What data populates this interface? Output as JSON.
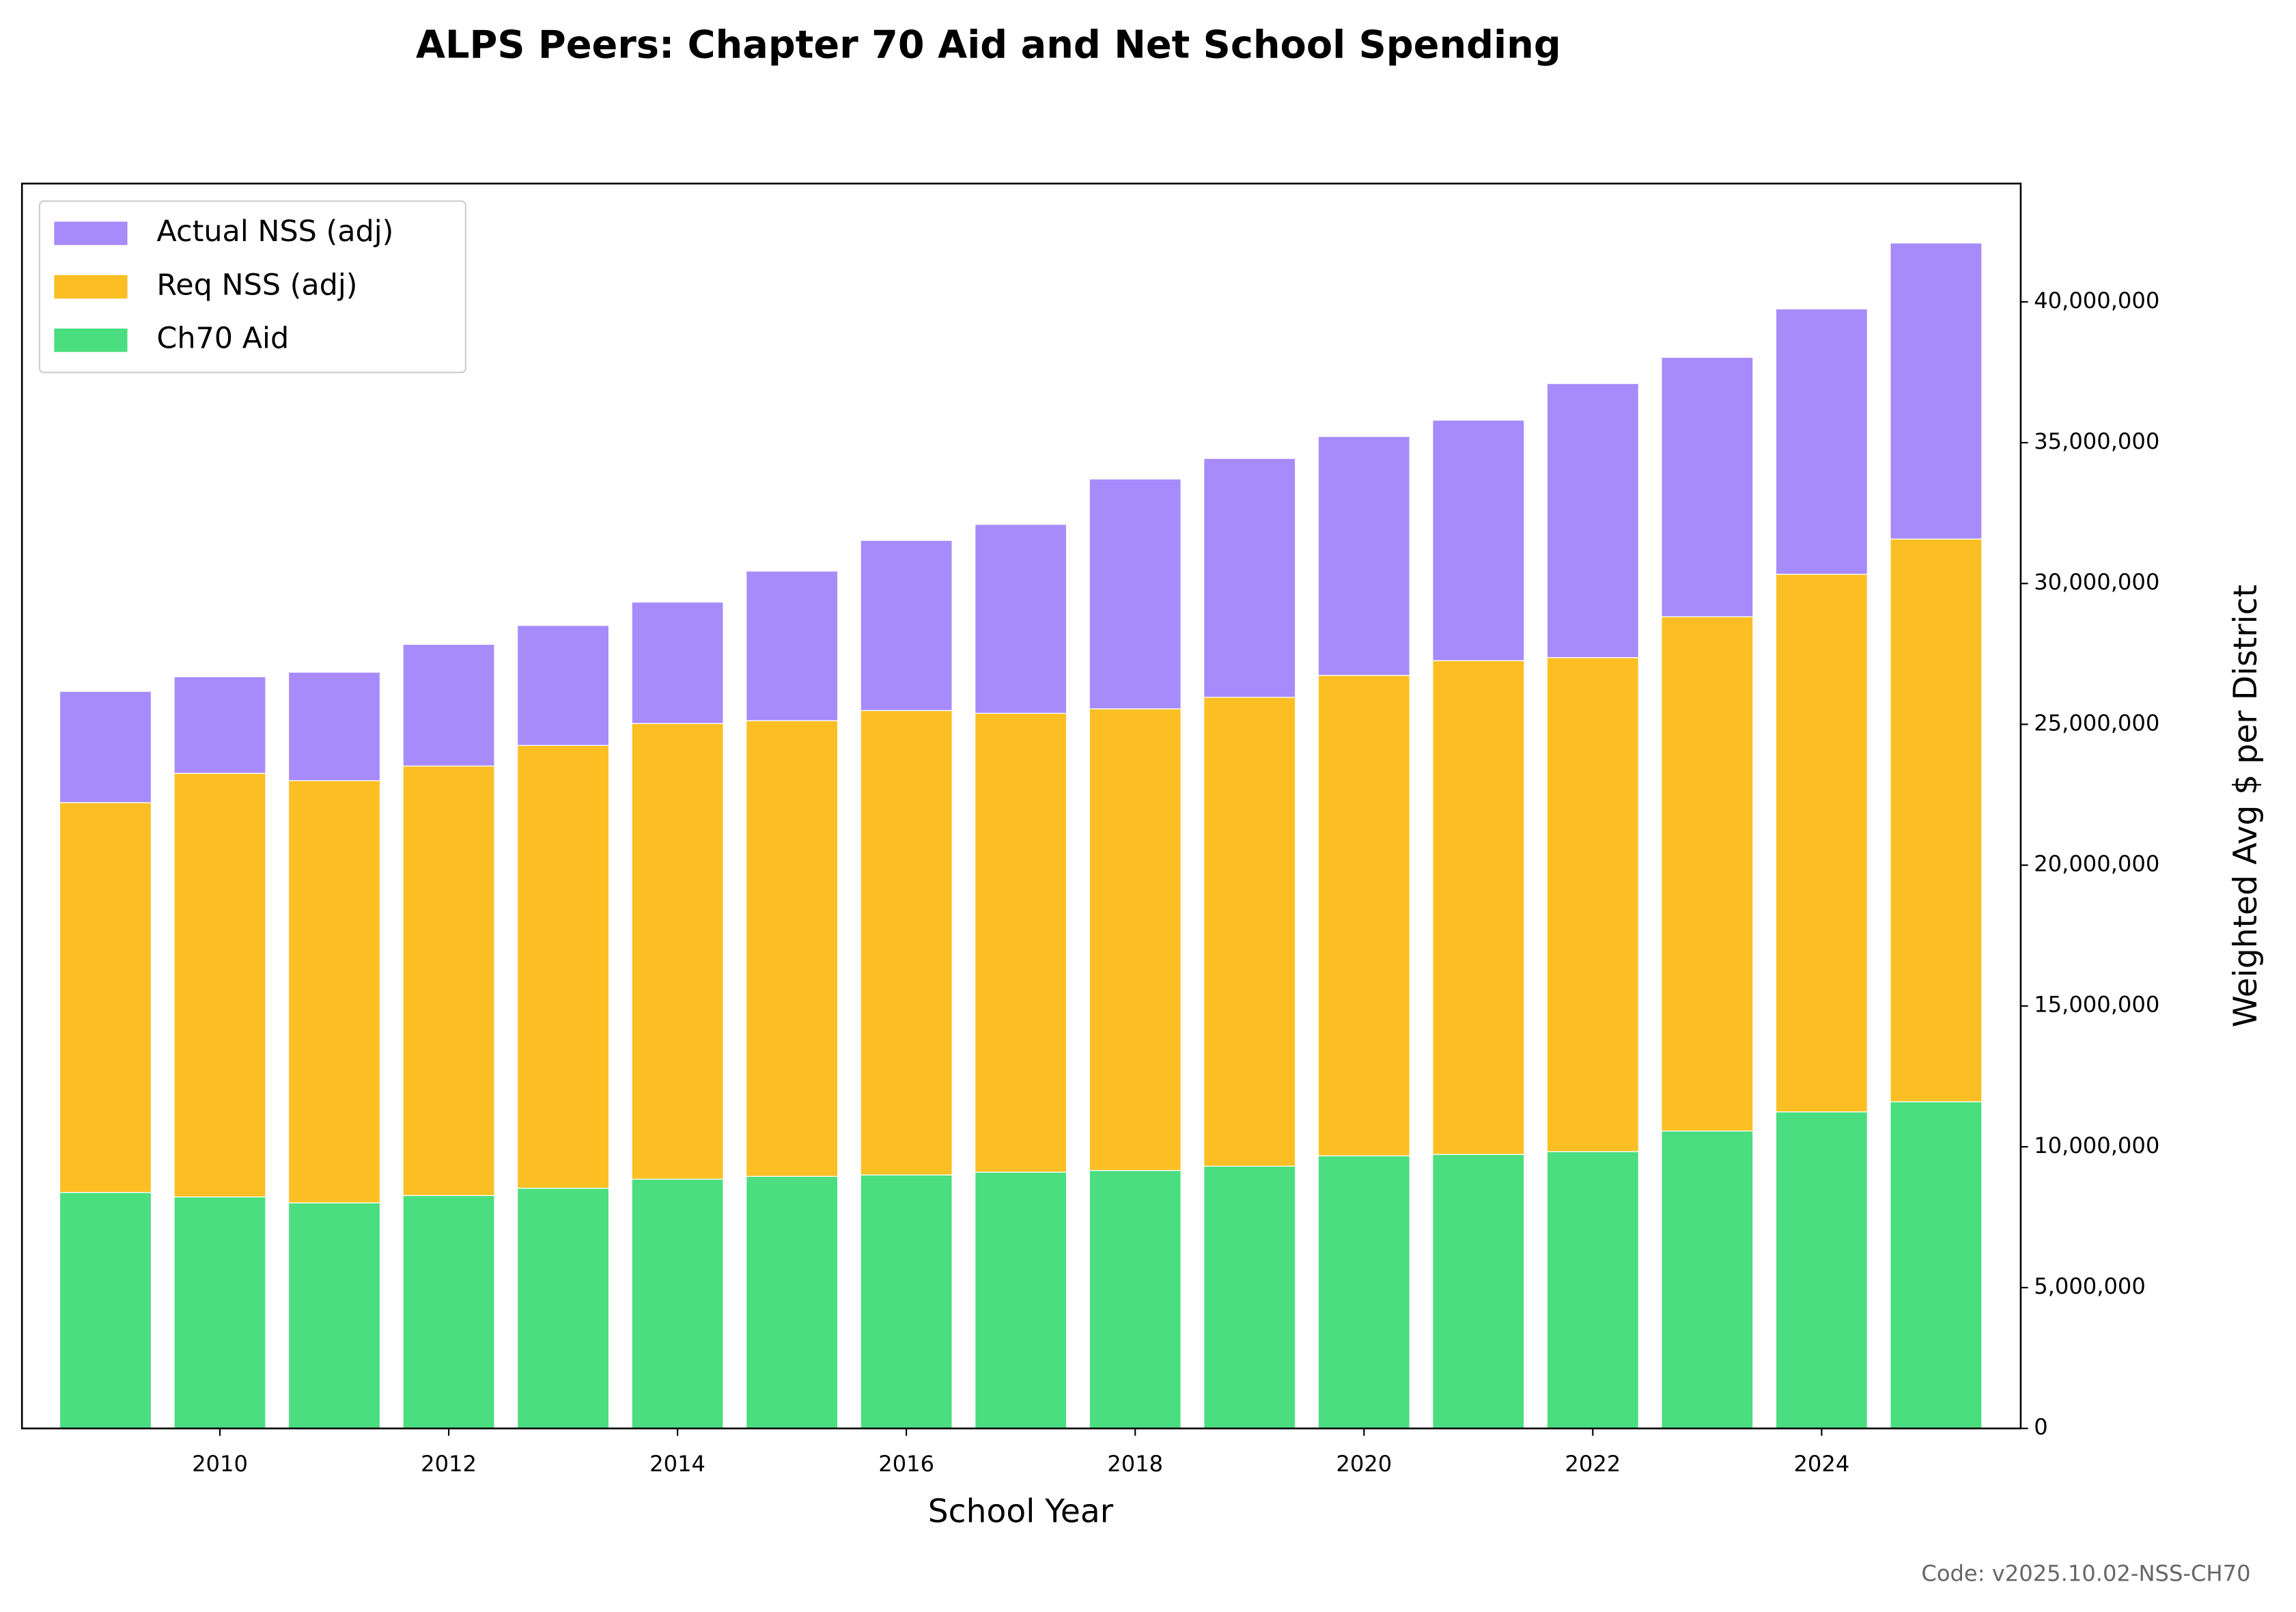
{
  "chart_data": {
    "type": "stacked_bar",
    "title": "ALPS Peers: Chapter 70 Aid and Net School Spending",
    "x_label": "School Year",
    "y_label": "Weighted Avg $ per District",
    "footer": "Code: v2025.10.02-NSS-CH70",
    "x": [
      2009,
      2010,
      2011,
      2012,
      2013,
      2014,
      2015,
      2016,
      2017,
      2018,
      2019,
      2020,
      2021,
      2022,
      2023,
      2024,
      2025
    ],
    "xlim": [
      2008.27,
      2025.74
    ],
    "xticks": [
      2010,
      2012,
      2014,
      2016,
      2018,
      2020,
      2022,
      2024
    ],
    "ylim": [
      0,
      44200000
    ],
    "yticks": [
      0,
      {
        "value": 5000000,
        "label": "5,000,000"
      },
      {
        "value": 10000000,
        "label": "10,000,000"
      },
      {
        "value": 15000000,
        "label": "15,000,000"
      },
      {
        "value": 20000000,
        "label": "20,000,000"
      },
      {
        "value": 25000000,
        "label": "25,000,000"
      },
      {
        "value": 30000000,
        "label": "30,000,000"
      },
      {
        "value": 35000000,
        "label": "35,000,000"
      },
      {
        "value": 40000000,
        "label": "40,000,000"
      }
    ],
    "y_axis_side": "right",
    "legend": "upper left",
    "series": [
      {
        "name": "Ch70 Aid",
        "color": "#4ade80",
        "values": [
          8380000,
          8220000,
          8010000,
          8270000,
          8530000,
          8850000,
          8950000,
          9000000,
          9100000,
          9160000,
          9310000,
          9680000,
          9730000,
          9830000,
          10560000,
          11240000,
          11600000
        ]
      },
      {
        "name": "Req NSS (adj)",
        "color": "#fbbf24",
        "values": [
          13840000,
          15040000,
          14990000,
          15250000,
          15720000,
          16180000,
          16180000,
          16490000,
          16290000,
          16390000,
          16650000,
          17060000,
          17530000,
          17540000,
          18260000,
          19090000,
          19980000
        ]
      },
      {
        "name": "Actual NSS (adj)",
        "color": "#a78bfa",
        "values": [
          3950000,
          3430000,
          3850000,
          4320000,
          4260000,
          4310000,
          5310000,
          6040000,
          6710000,
          8160000,
          8480000,
          8480000,
          8540000,
          9730000,
          9210000,
          9420000,
          10510000
        ]
      }
    ]
  }
}
